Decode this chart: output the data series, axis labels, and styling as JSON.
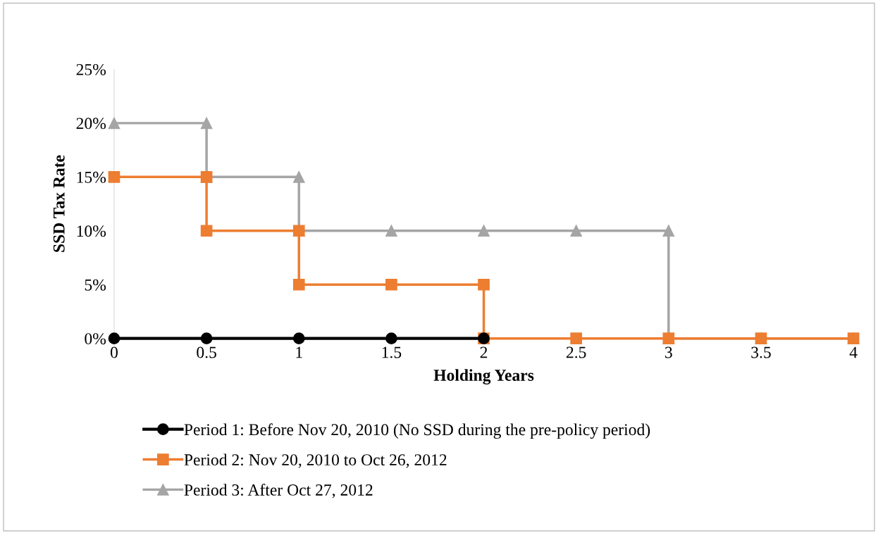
{
  "chart_data": {
    "type": "line",
    "xlabel": "Holding Years",
    "ylabel": "SSD Tax Rate",
    "xlim": [
      0,
      4
    ],
    "ylim": [
      0,
      25
    ],
    "xticks": [
      0,
      0.5,
      1,
      1.5,
      2,
      2.5,
      3,
      3.5,
      4
    ],
    "yticks": [
      {
        "value": 0,
        "label": "0%"
      },
      {
        "value": 5,
        "label": "5%"
      },
      {
        "value": 10,
        "label": "10%"
      },
      {
        "value": 15,
        "label": "15%"
      },
      {
        "value": 20,
        "label": "20%"
      },
      {
        "value": 25,
        "label": "25%"
      }
    ],
    "grid": false,
    "legend": "bottom",
    "line_style": "solid",
    "series": [
      {
        "name": "Period 1: Before Nov 20, 2010 (No SSD during the pre-policy period)",
        "color": "#000000",
        "marker": "circle",
        "x": [
          0,
          0.5,
          1,
          1.5,
          2
        ],
        "values": [
          0,
          0,
          0,
          0,
          0
        ]
      },
      {
        "name": "Period 2: Nov 20, 2010 to Oct 26, 2012",
        "color": "#ed7d31",
        "marker": "square",
        "x": [
          0,
          0.5,
          0.5,
          1,
          1,
          1.5,
          2,
          2,
          2.5,
          3,
          3.5,
          4
        ],
        "values": [
          15,
          15,
          10,
          10,
          5,
          5,
          5,
          0,
          0,
          0,
          0,
          0
        ]
      },
      {
        "name": "Period 3: After Oct 27, 2012",
        "color": "#a5a5a5",
        "marker": "triangle",
        "x": [
          0,
          0.5,
          0.5,
          1,
          1,
          1.5,
          2,
          2.5,
          3,
          3,
          3.5,
          4
        ],
        "values": [
          20,
          20,
          15,
          15,
          10,
          10,
          10,
          10,
          10,
          0,
          0,
          0
        ]
      }
    ]
  }
}
